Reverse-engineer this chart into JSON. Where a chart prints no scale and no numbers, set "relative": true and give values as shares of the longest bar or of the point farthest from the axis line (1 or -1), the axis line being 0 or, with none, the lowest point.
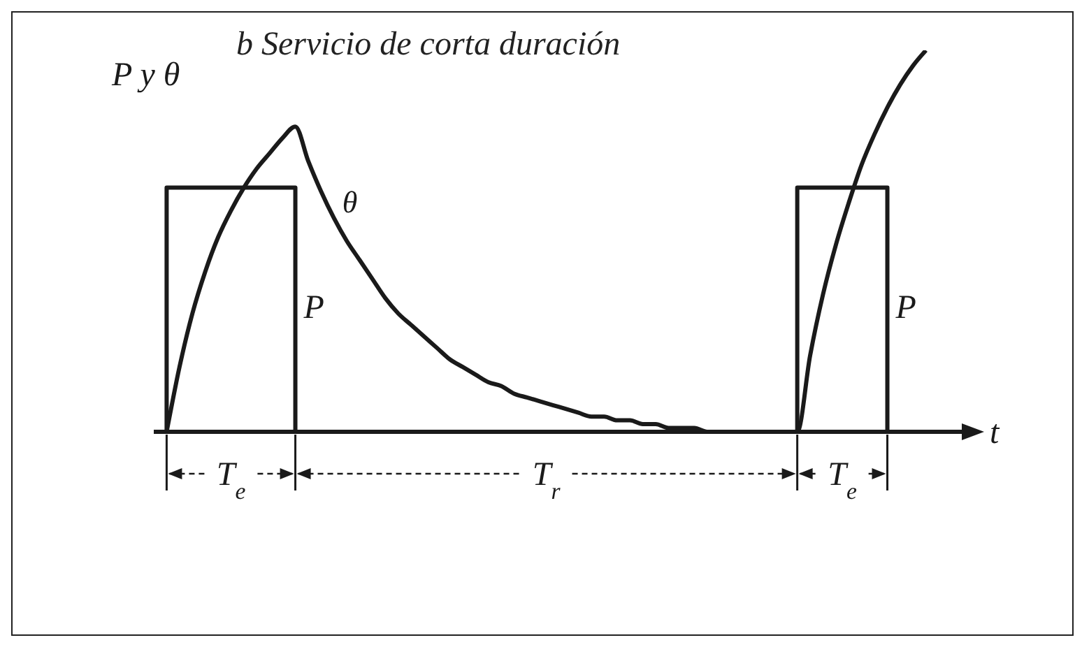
{
  "chart_data": {
    "type": "line",
    "relative": true,
    "title": "b Servicio de corta duración",
    "xlabel": "t",
    "ylabel": "P y θ",
    "categories": [
      null,
      null,
      null,
      null,
      null,
      null,
      null,
      null,
      null,
      null,
      null,
      null,
      null,
      null,
      null,
      null,
      null,
      null,
      null,
      null,
      null,
      null,
      null,
      null,
      null,
      null,
      null,
      null,
      null,
      null,
      null,
      null,
      null,
      null,
      null,
      null,
      null,
      null,
      null,
      null,
      null,
      null,
      null,
      null,
      null,
      null,
      null,
      null,
      null,
      null,
      null,
      null,
      null,
      null,
      null,
      null,
      null,
      null,
      null,
      null,
      null,
      null,
      null,
      null
    ],
    "series": [
      {
        "name": "P",
        "type": "step",
        "color": "#1a1a1a",
        "values": [
          0,
          0.64,
          0.64,
          0.64,
          0.64,
          0.64,
          0.64,
          0.64,
          0.64,
          0.64,
          0.64,
          0,
          0,
          0,
          0,
          0,
          0,
          0,
          0,
          0,
          0,
          0,
          0,
          0,
          0,
          0,
          0,
          0,
          0,
          0,
          0,
          0,
          0,
          0,
          0,
          0,
          0,
          0,
          0,
          0,
          0,
          0,
          0,
          0,
          0,
          0,
          0,
          0,
          0,
          0,
          0.64,
          0.64,
          0.64,
          0.64,
          0.64,
          0.64,
          0.64,
          0,
          null,
          null,
          null,
          null,
          null,
          null
        ]
      },
      {
        "name": "θ",
        "type": "line",
        "color": "#1a1a1a",
        "values": [
          null,
          0,
          0.17,
          0.31,
          0.42,
          0.51,
          0.58,
          0.64,
          0.69,
          0.73,
          0.77,
          0.8,
          0.71,
          0.63,
          0.56,
          0.5,
          0.45,
          0.4,
          0.35,
          0.31,
          0.28,
          0.25,
          0.22,
          0.19,
          0.17,
          0.15,
          0.13,
          0.12,
          0.1,
          0.09,
          0.08,
          0.07,
          0.06,
          0.05,
          0.04,
          0.04,
          0.03,
          0.03,
          0.02,
          0.02,
          0.01,
          0.01,
          0.01,
          0,
          0,
          0,
          0,
          0,
          0,
          0,
          0,
          0.2,
          0.36,
          0.49,
          0.6,
          0.7,
          0.78,
          0.85,
          0.91,
          0.96,
          1,
          null,
          null,
          null
        ]
      }
    ],
    "annotations": [
      "T$_{e}$",
      "T$_{r}$",
      "T$_{e}$"
    ]
  }
}
